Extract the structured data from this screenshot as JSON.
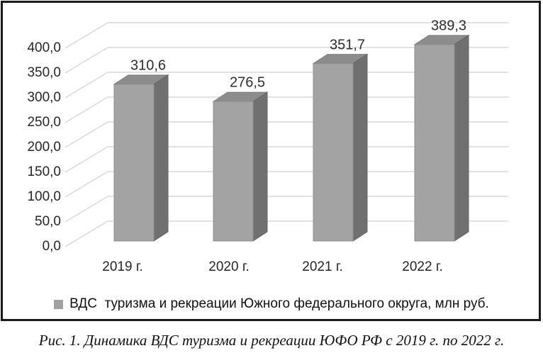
{
  "figure": {
    "caption": "Рис. 1. Динамика ВДС туризма и рекреации ЮФО РФ с 2019 г. по 2022 г."
  },
  "legend": {
    "label": "ВДС  туризма и рекреации Южного федерального округа, млн руб."
  },
  "chart_data": {
    "type": "bar",
    "style": "3d-column",
    "title": "",
    "xlabel": "",
    "ylabel": "",
    "categories": [
      "2019 г.",
      "2020 г.",
      "2021 г.",
      "2022 г."
    ],
    "values": [
      310.6,
      276.5,
      351.7,
      389.3
    ],
    "value_labels": [
      "310,6",
      "276,5",
      "351,7",
      "389,3"
    ],
    "series": [
      {
        "name": "ВДС  туризма и рекреации Южного федерального округа, млн руб.",
        "values": [
          310.6,
          276.5,
          351.7,
          389.3
        ]
      }
    ],
    "ylim": [
      0,
      400
    ],
    "ytick_step": 50,
    "ytick_labels": [
      "400,0",
      "350,0",
      "300,0",
      "250,0",
      "200,0",
      "150,0",
      "100,0",
      "50,0",
      "0,0"
    ],
    "grid": true,
    "legend_position": "bottom",
    "colors": {
      "bar_front": "#a3a3a3",
      "bar_top": "#8c8c8c",
      "bar_side": "#707070",
      "bar_front_stroke": "#8f8f8f",
      "bar_top_stroke": "#7d7d7d",
      "bar_side_stroke": "#646464",
      "gridline": "#d9d9d9",
      "axis_text": "#262626",
      "legend_marker": "#a0a2a2",
      "frame_border": "#1a1a1a"
    }
  }
}
